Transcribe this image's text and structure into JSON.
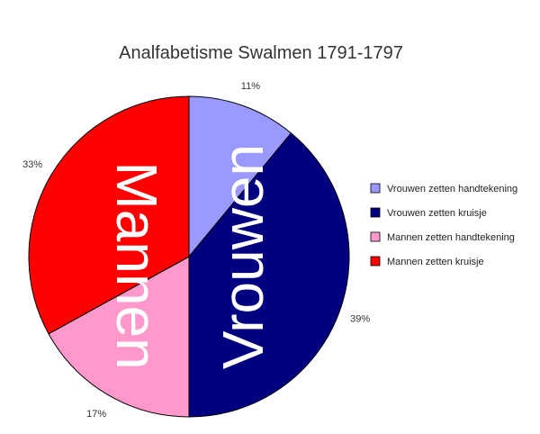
{
  "chart_data": {
    "type": "pie",
    "title": "Analfabetisme Swalmen 1791-1797",
    "slices": [
      {
        "name": "Vrouwen zetten handtekening",
        "value": 11,
        "label": "11%",
        "color": "#9999ff"
      },
      {
        "name": "Vrouwen zetten kruisje",
        "value": 39,
        "label": "39%",
        "color": "#000080"
      },
      {
        "name": "Mannen zetten handtekening",
        "value": 17,
        "label": "17%",
        "color": "#ff99cc"
      },
      {
        "name": "Mannen zetten kruisje",
        "value": 33,
        "label": "33%",
        "color": "#ff0000"
      }
    ],
    "legend_position": "right",
    "overlay_labels": [
      {
        "text": "Vrouwen",
        "color": "#ffffff"
      },
      {
        "text": "Mannen",
        "color": "#ffffff"
      }
    ]
  }
}
